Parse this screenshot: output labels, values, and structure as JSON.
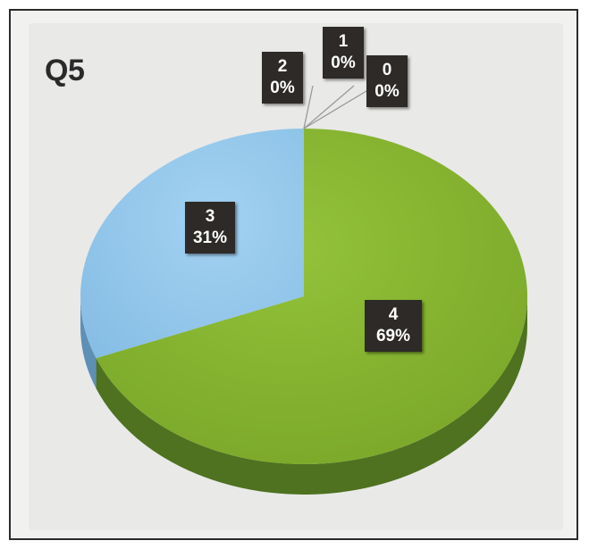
{
  "chart_data": {
    "type": "pie",
    "title": "Q5",
    "slices": [
      {
        "label": "0",
        "value": 0,
        "percent": "0%",
        "color": "#7faa3a"
      },
      {
        "label": "1",
        "value": 0,
        "percent": "0%",
        "color": "#c05050"
      },
      {
        "label": "2",
        "value": 0,
        "percent": "0%",
        "color": "#7a7a7a"
      },
      {
        "label": "3",
        "value": 31,
        "percent": "31%",
        "color": "#93c7ea"
      },
      {
        "label": "4",
        "value": 69,
        "percent": "69%",
        "color": "#86b52e"
      }
    ]
  },
  "colors": {
    "slice_4_side": "#4e7220",
    "slice_3_side": "#5e8fb5",
    "label_background": "#2d2a27",
    "label_text": "#ffffff"
  }
}
